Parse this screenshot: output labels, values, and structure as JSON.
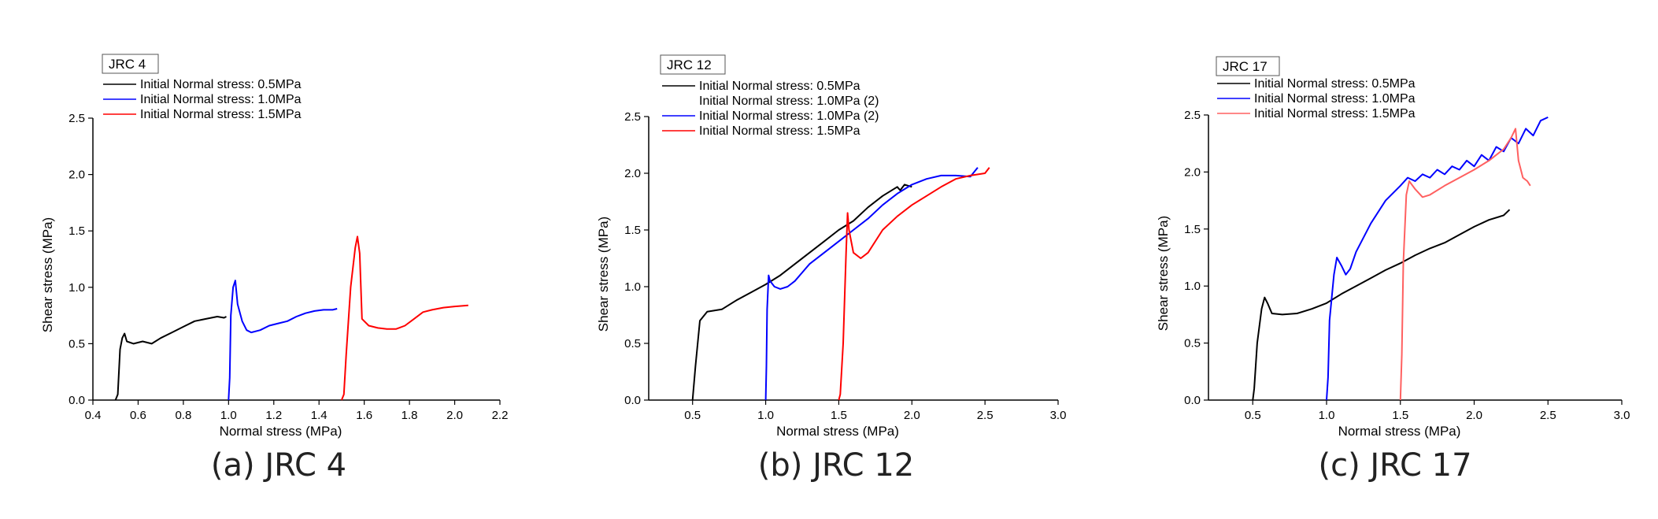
{
  "chart_data": [
    {
      "type": "line",
      "title": "JRC 4",
      "caption": "(a) JRC 4",
      "xlabel": "Normal stress (MPa)",
      "ylabel": "Shear stress (MPa)",
      "xlim": [
        0.4,
        2.2
      ],
      "ylim": [
        0,
        2.5
      ],
      "xticks": [
        0.4,
        0.6,
        0.8,
        1.0,
        1.2,
        1.4,
        1.6,
        1.8,
        2.0,
        2.2
      ],
      "xtick_labels": [
        "0.4",
        "0.6",
        "0.8",
        "1.0",
        "1.2",
        "1.4",
        "1.6",
        "1.8",
        "2.0",
        "2.2"
      ],
      "yticks": [
        0,
        0.5,
        1.0,
        1.5,
        2.0,
        2.5
      ],
      "ytick_labels": [
        "0.0",
        "0.5",
        "1.0",
        "1.5",
        "2.0",
        "2.5"
      ],
      "series": [
        {
          "name": "Initial Normal stress: 0.5MPa",
          "color": "#000000",
          "points": [
            [
              0.5,
              0
            ],
            [
              0.51,
              0.05
            ],
            [
              0.52,
              0.45
            ],
            [
              0.53,
              0.55
            ],
            [
              0.54,
              0.59
            ],
            [
              0.55,
              0.52
            ],
            [
              0.58,
              0.5
            ],
            [
              0.62,
              0.52
            ],
            [
              0.66,
              0.5
            ],
            [
              0.7,
              0.55
            ],
            [
              0.75,
              0.6
            ],
            [
              0.8,
              0.65
            ],
            [
              0.85,
              0.7
            ],
            [
              0.9,
              0.72
            ],
            [
              0.95,
              0.74
            ],
            [
              0.98,
              0.73
            ],
            [
              0.99,
              0.74
            ]
          ]
        },
        {
          "name": "Initial Normal stress: 1.0MPa",
          "color": "#0000ff",
          "points": [
            [
              1.0,
              0
            ],
            [
              1.005,
              0.2
            ],
            [
              1.01,
              0.75
            ],
            [
              1.02,
              1.0
            ],
            [
              1.03,
              1.06
            ],
            [
              1.04,
              0.85
            ],
            [
              1.06,
              0.7
            ],
            [
              1.08,
              0.62
            ],
            [
              1.1,
              0.6
            ],
            [
              1.14,
              0.62
            ],
            [
              1.18,
              0.66
            ],
            [
              1.22,
              0.68
            ],
            [
              1.26,
              0.7
            ],
            [
              1.3,
              0.74
            ],
            [
              1.34,
              0.77
            ],
            [
              1.38,
              0.79
            ],
            [
              1.42,
              0.8
            ],
            [
              1.46,
              0.8
            ],
            [
              1.48,
              0.81
            ]
          ]
        },
        {
          "name": "Initial Normal stress: 1.5MPa",
          "color": "#ff0000",
          "points": [
            [
              1.5,
              0
            ],
            [
              1.51,
              0.05
            ],
            [
              1.52,
              0.4
            ],
            [
              1.54,
              1.0
            ],
            [
              1.56,
              1.35
            ],
            [
              1.57,
              1.45
            ],
            [
              1.58,
              1.3
            ],
            [
              1.59,
              0.72
            ],
            [
              1.62,
              0.66
            ],
            [
              1.66,
              0.64
            ],
            [
              1.7,
              0.63
            ],
            [
              1.74,
              0.63
            ],
            [
              1.78,
              0.66
            ],
            [
              1.82,
              0.72
            ],
            [
              1.86,
              0.78
            ],
            [
              1.9,
              0.8
            ],
            [
              1.95,
              0.82
            ],
            [
              2.0,
              0.83
            ],
            [
              2.06,
              0.84
            ]
          ]
        }
      ]
    },
    {
      "type": "line",
      "title": "JRC 12",
      "caption": "(b) JRC 12",
      "xlabel": "Normal stress (MPa)",
      "ylabel": "Shear stress (MPa)",
      "xlim": [
        0.2,
        3.0
      ],
      "ylim": [
        0,
        2.5
      ],
      "xticks": [
        0.5,
        1.0,
        1.5,
        2.0,
        2.5,
        3.0
      ],
      "xtick_labels": [
        "0.5",
        "1.0",
        "1.5",
        "2.0",
        "2.5",
        "3.0"
      ],
      "yticks": [
        0,
        0.5,
        1.0,
        1.5,
        2.0,
        2.5
      ],
      "ytick_labels": [
        "0.0",
        "0.5",
        "1.0",
        "1.5",
        "2.0",
        "2.5"
      ],
      "series": [
        {
          "name": "Initial Normal stress: 0.5MPa",
          "color": "#000000",
          "points": [
            [
              0.5,
              0
            ],
            [
              0.52,
              0.3
            ],
            [
              0.55,
              0.7
            ],
            [
              0.6,
              0.78
            ],
            [
              0.7,
              0.8
            ],
            [
              0.8,
              0.88
            ],
            [
              0.9,
              0.95
            ],
            [
              1.0,
              1.02
            ],
            [
              1.1,
              1.1
            ],
            [
              1.2,
              1.2
            ],
            [
              1.3,
              1.3
            ],
            [
              1.4,
              1.4
            ],
            [
              1.5,
              1.5
            ],
            [
              1.6,
              1.58
            ],
            [
              1.7,
              1.7
            ],
            [
              1.8,
              1.8
            ],
            [
              1.9,
              1.88
            ],
            [
              1.92,
              1.85
            ],
            [
              1.95,
              1.9
            ],
            [
              2.0,
              1.88
            ]
          ]
        },
        {
          "name": "Initial Normal stress: 1.0MPa (2)",
          "color": "#ffffff",
          "points": []
        },
        {
          "name": "Initial Normal stress: 1.0MPa (2)",
          "color": "#0000ff",
          "points": [
            [
              1.0,
              0
            ],
            [
              1.005,
              0.3
            ],
            [
              1.01,
              0.8
            ],
            [
              1.02,
              1.1
            ],
            [
              1.03,
              1.05
            ],
            [
              1.06,
              1.0
            ],
            [
              1.1,
              0.98
            ],
            [
              1.15,
              1.0
            ],
            [
              1.2,
              1.05
            ],
            [
              1.3,
              1.2
            ],
            [
              1.4,
              1.3
            ],
            [
              1.5,
              1.4
            ],
            [
              1.6,
              1.5
            ],
            [
              1.7,
              1.6
            ],
            [
              1.8,
              1.72
            ],
            [
              1.9,
              1.82
            ],
            [
              2.0,
              1.9
            ],
            [
              2.1,
              1.95
            ],
            [
              2.2,
              1.98
            ],
            [
              2.3,
              1.98
            ],
            [
              2.4,
              1.97
            ],
            [
              2.45,
              2.05
            ]
          ]
        },
        {
          "name": "Initial Normal stress: 1.5MPa",
          "color": "#ff0000",
          "points": [
            [
              1.5,
              0
            ],
            [
              1.51,
              0.05
            ],
            [
              1.53,
              0.5
            ],
            [
              1.55,
              1.3
            ],
            [
              1.56,
              1.65
            ],
            [
              1.57,
              1.5
            ],
            [
              1.6,
              1.3
            ],
            [
              1.65,
              1.25
            ],
            [
              1.7,
              1.3
            ],
            [
              1.8,
              1.5
            ],
            [
              1.9,
              1.62
            ],
            [
              2.0,
              1.72
            ],
            [
              2.1,
              1.8
            ],
            [
              2.2,
              1.88
            ],
            [
              2.3,
              1.95
            ],
            [
              2.4,
              1.98
            ],
            [
              2.5,
              2.0
            ],
            [
              2.53,
              2.05
            ]
          ]
        }
      ]
    },
    {
      "type": "line",
      "title": "JRC 17",
      "caption": "(c) JRC 17",
      "xlabel": "Normal stress (MPa)",
      "ylabel": "Shear stress (MPa)",
      "xlim": [
        0.2,
        3.0
      ],
      "ylim": [
        0,
        2.5
      ],
      "xticks": [
        0.5,
        1.0,
        1.5,
        2.0,
        2.5,
        3.0
      ],
      "xtick_labels": [
        "0.5",
        "1.0",
        "1.5",
        "2.0",
        "2.5",
        "3.0"
      ],
      "yticks": [
        0,
        0.5,
        1.0,
        1.5,
        2.0,
        2.5
      ],
      "ytick_labels": [
        "0.0",
        "0.5",
        "1.0",
        "1.5",
        "2.0",
        "2.5"
      ],
      "series": [
        {
          "name": "Initial Normal stress: 0.5MPa",
          "color": "#000000",
          "points": [
            [
              0.5,
              0
            ],
            [
              0.51,
              0.1
            ],
            [
              0.53,
              0.5
            ],
            [
              0.56,
              0.8
            ],
            [
              0.58,
              0.9
            ],
            [
              0.6,
              0.85
            ],
            [
              0.63,
              0.76
            ],
            [
              0.7,
              0.75
            ],
            [
              0.8,
              0.76
            ],
            [
              0.9,
              0.8
            ],
            [
              1.0,
              0.85
            ],
            [
              1.1,
              0.93
            ],
            [
              1.2,
              1.0
            ],
            [
              1.3,
              1.07
            ],
            [
              1.4,
              1.14
            ],
            [
              1.5,
              1.2
            ],
            [
              1.6,
              1.27
            ],
            [
              1.7,
              1.33
            ],
            [
              1.8,
              1.38
            ],
            [
              1.9,
              1.45
            ],
            [
              2.0,
              1.52
            ],
            [
              2.1,
              1.58
            ],
            [
              2.2,
              1.62
            ],
            [
              2.24,
              1.67
            ]
          ]
        },
        {
          "name": "Initial Normal stress: 1.0MPa",
          "color": "#0000ff",
          "points": [
            [
              1.0,
              0
            ],
            [
              1.01,
              0.2
            ],
            [
              1.02,
              0.7
            ],
            [
              1.05,
              1.1
            ],
            [
              1.07,
              1.25
            ],
            [
              1.1,
              1.18
            ],
            [
              1.13,
              1.1
            ],
            [
              1.16,
              1.15
            ],
            [
              1.2,
              1.3
            ],
            [
              1.3,
              1.55
            ],
            [
              1.4,
              1.75
            ],
            [
              1.5,
              1.88
            ],
            [
              1.55,
              1.95
            ],
            [
              1.6,
              1.92
            ],
            [
              1.65,
              1.98
            ],
            [
              1.7,
              1.95
            ],
            [
              1.75,
              2.02
            ],
            [
              1.8,
              1.98
            ],
            [
              1.85,
              2.05
            ],
            [
              1.9,
              2.02
            ],
            [
              1.95,
              2.1
            ],
            [
              2.0,
              2.05
            ],
            [
              2.05,
              2.15
            ],
            [
              2.1,
              2.1
            ],
            [
              2.15,
              2.22
            ],
            [
              2.2,
              2.18
            ],
            [
              2.25,
              2.3
            ],
            [
              2.3,
              2.25
            ],
            [
              2.35,
              2.38
            ],
            [
              2.4,
              2.32
            ],
            [
              2.45,
              2.45
            ],
            [
              2.5,
              2.48
            ]
          ]
        },
        {
          "name": "Initial Normal stress: 1.5MPa",
          "color": "#ff6060",
          "points": [
            [
              1.5,
              0
            ],
            [
              1.51,
              0.4
            ],
            [
              1.52,
              1.2
            ],
            [
              1.54,
              1.8
            ],
            [
              1.56,
              1.92
            ],
            [
              1.6,
              1.85
            ],
            [
              1.65,
              1.78
            ],
            [
              1.7,
              1.8
            ],
            [
              1.8,
              1.88
            ],
            [
              1.9,
              1.95
            ],
            [
              2.0,
              2.02
            ],
            [
              2.1,
              2.1
            ],
            [
              2.2,
              2.2
            ],
            [
              2.25,
              2.3
            ],
            [
              2.28,
              2.38
            ],
            [
              2.3,
              2.1
            ],
            [
              2.33,
              1.95
            ],
            [
              2.36,
              1.92
            ],
            [
              2.38,
              1.88
            ]
          ]
        }
      ]
    }
  ]
}
